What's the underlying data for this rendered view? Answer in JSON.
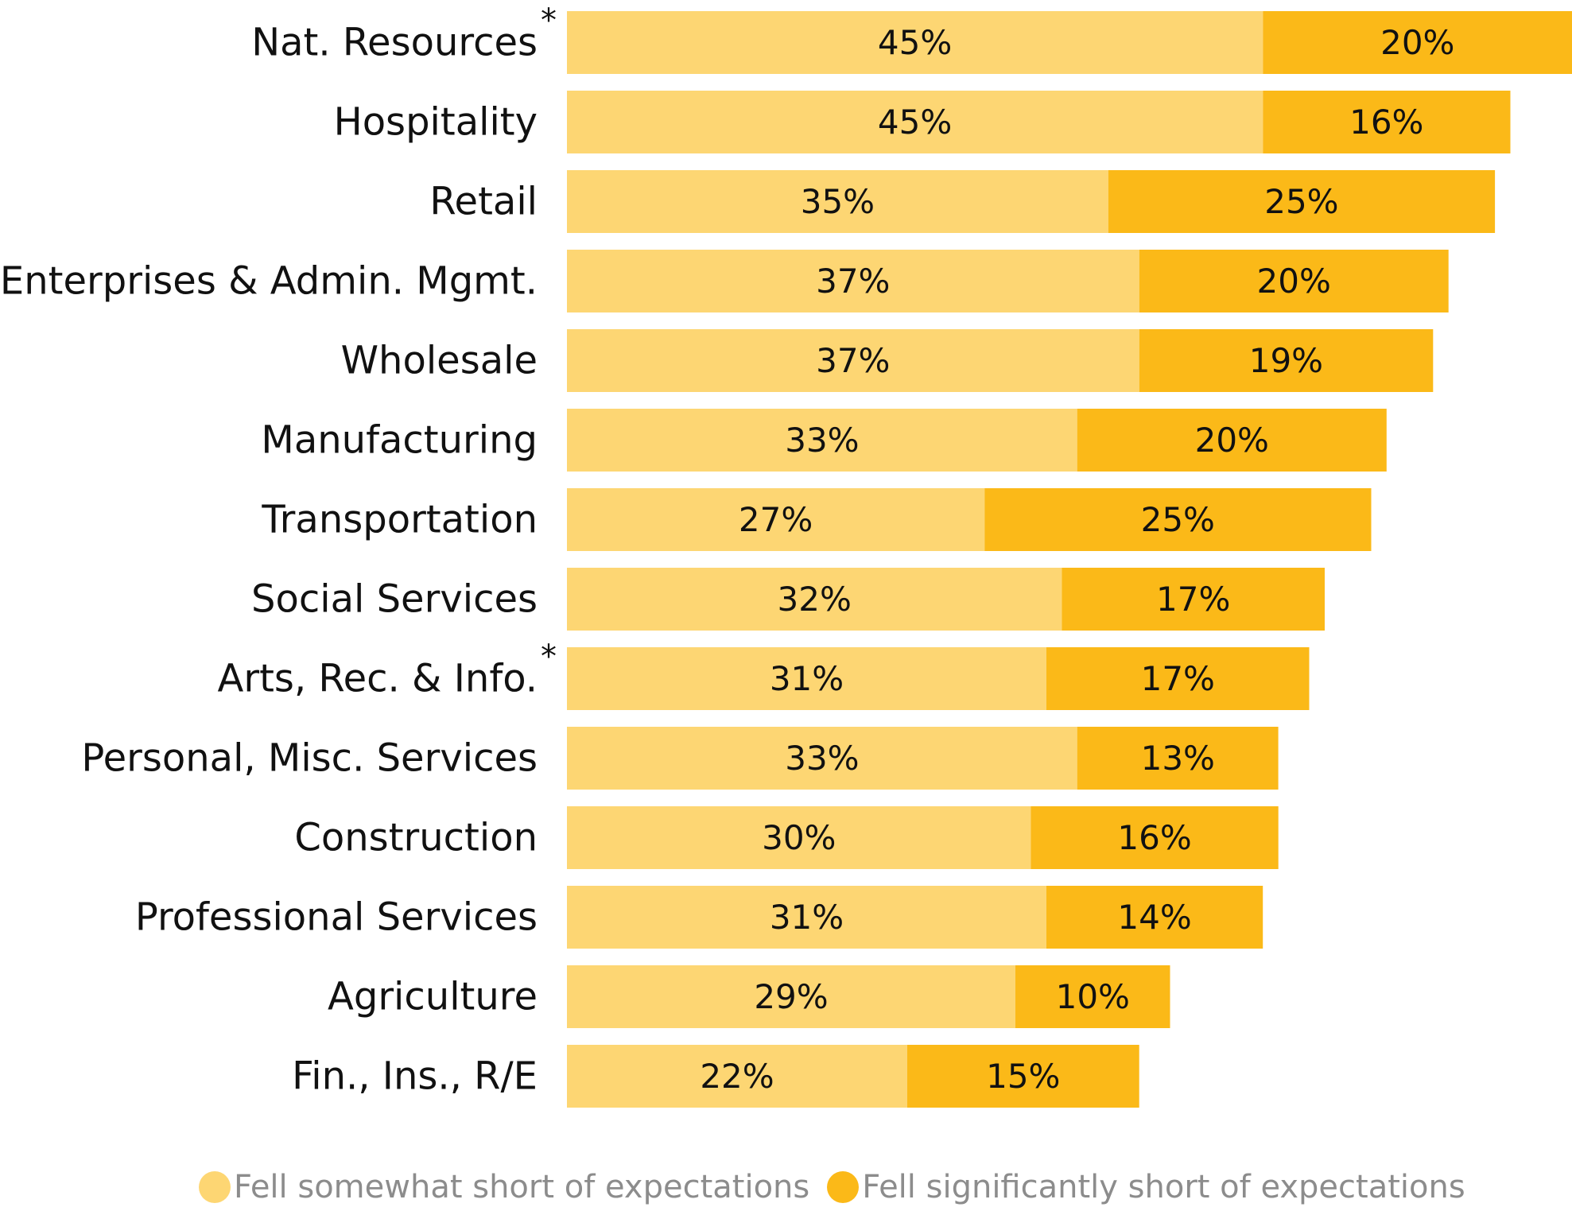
{
  "chart_data": {
    "type": "bar",
    "orientation": "horizontal",
    "stacked": true,
    "categories": [
      "Nat. Resources",
      "Hospitality",
      "Retail",
      "Enterprises & Admin. Mgmt.",
      "Wholesale",
      "Manufacturing",
      "Transportation",
      "Social Services",
      "Arts, Rec. & Info.",
      "Personal, Misc. Services",
      "Construction",
      "Professional Services",
      "Agriculture",
      "Fin., Ins., R/E"
    ],
    "footnote_marks": [
      "*",
      "",
      "",
      "",
      "",
      "",
      "",
      "",
      "*",
      "",
      "",
      "",
      "",
      ""
    ],
    "series": [
      {
        "name": "Fell somewhat short of expectations",
        "color": "#fdd673",
        "values": [
          45,
          45,
          35,
          37,
          37,
          33,
          27,
          32,
          31,
          33,
          30,
          31,
          29,
          22
        ],
        "labels": [
          "45%",
          "45%",
          "35%",
          "37%",
          "37%",
          "33%",
          "27%",
          "32%",
          "31%",
          "33%",
          "30%",
          "31%",
          "29%",
          "22%"
        ]
      },
      {
        "name": "Fell significantly short of expectations",
        "color": "#fbb918",
        "values": [
          20,
          16,
          25,
          20,
          19,
          20,
          25,
          17,
          17,
          13,
          16,
          14,
          10,
          15
        ],
        "labels": [
          "20%",
          "16%",
          "25%",
          "20%",
          "19%",
          "20%",
          "25%",
          "17%",
          "17%",
          "13%",
          "16%",
          "14%",
          "10%",
          "15%"
        ]
      }
    ],
    "xlim": [
      0,
      65
    ],
    "grid": false,
    "legend_position": "bottom"
  }
}
